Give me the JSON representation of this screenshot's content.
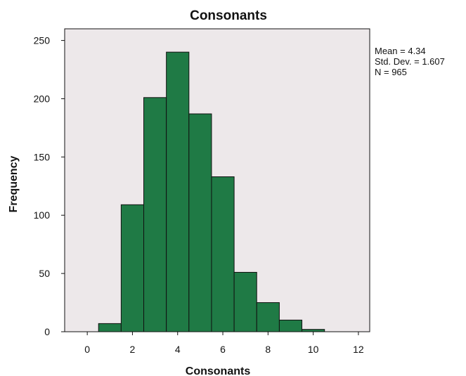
{
  "chart_data": {
    "type": "bar",
    "title": "Consonants",
    "xlabel": "Consonants",
    "ylabel": "Frequency",
    "xlim": [
      -1,
      12.5
    ],
    "ylim": [
      0,
      260
    ],
    "x_ticks": [
      0,
      2,
      4,
      6,
      8,
      10,
      12
    ],
    "y_ticks": [
      0,
      50,
      100,
      150,
      200,
      250
    ],
    "bins": [
      {
        "from": 0.5,
        "to": 1.5,
        "value": 7
      },
      {
        "from": 1.5,
        "to": 2.5,
        "value": 109
      },
      {
        "from": 2.5,
        "to": 3.5,
        "value": 201
      },
      {
        "from": 3.5,
        "to": 4.5,
        "value": 240
      },
      {
        "from": 4.5,
        "to": 5.5,
        "value": 187
      },
      {
        "from": 5.5,
        "to": 6.5,
        "value": 133
      },
      {
        "from": 6.5,
        "to": 7.5,
        "value": 51
      },
      {
        "from": 7.5,
        "to": 8.5,
        "value": 25
      },
      {
        "from": 8.5,
        "to": 9.5,
        "value": 10
      },
      {
        "from": 9.5,
        "to": 10.5,
        "value": 2
      }
    ],
    "stats": {
      "mean": "Mean = 4.34",
      "std_dev": "Std. Dev. = 1.607",
      "n": "N = 965"
    },
    "colors": {
      "bar_fill": "#1f7a45",
      "bar_stroke": "#111111",
      "plot_background": "#ede8ea",
      "frame": "#111111"
    },
    "grid": false,
    "legend_placement": "none"
  }
}
